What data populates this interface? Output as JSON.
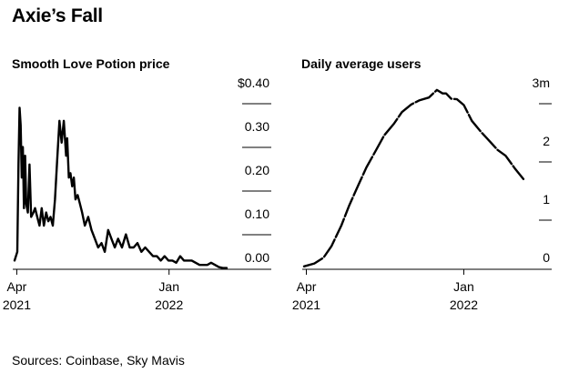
{
  "title": "Axie’s Fall",
  "source": "Sources: Coinbase, Sky Mavis",
  "chart_data": [
    {
      "type": "line",
      "title": "Smooth Love Potion price",
      "y_tick_labels": [
        "$0.40",
        "0.30",
        "0.20",
        "0.10",
        "0.00"
      ],
      "y_ticks": [
        0.4,
        0.3,
        0.2,
        0.1,
        0.0
      ],
      "ylim": [
        0,
        0.4
      ],
      "x_ticks": [
        {
          "date": "2021-04-01",
          "label": [
            "Apr",
            "2021"
          ]
        },
        {
          "date": "2022-01-01",
          "label": [
            "Jan",
            "2022"
          ]
        }
      ],
      "xlim": [
        "2021-03-28",
        "2022-04-20"
      ],
      "series": [
        {
          "x": [
            "2021-03-28",
            "2021-04-02",
            "2021-04-04",
            "2021-04-06",
            "2021-04-08",
            "2021-04-10",
            "2021-04-12",
            "2021-04-14",
            "2021-04-16",
            "2021-04-18",
            "2021-04-21",
            "2021-04-24",
            "2021-04-27",
            "2021-05-01",
            "2021-05-04",
            "2021-05-08",
            "2021-05-12",
            "2021-05-16",
            "2021-05-20",
            "2021-05-24",
            "2021-05-28",
            "2021-06-01",
            "2021-06-05",
            "2021-06-09",
            "2021-06-13",
            "2021-06-17",
            "2021-06-21",
            "2021-06-25",
            "2021-06-29",
            "2021-07-01",
            "2021-07-04",
            "2021-07-07",
            "2021-07-10",
            "2021-07-13",
            "2021-07-16",
            "2021-07-20",
            "2021-07-24",
            "2021-07-28",
            "2021-08-02",
            "2021-08-08",
            "2021-08-14",
            "2021-08-20",
            "2021-08-26",
            "2021-09-01",
            "2021-09-07",
            "2021-09-13",
            "2021-09-19",
            "2021-09-25",
            "2021-10-01",
            "2021-10-08",
            "2021-10-15",
            "2021-10-22",
            "2021-10-29",
            "2021-11-05",
            "2021-11-12",
            "2021-11-19",
            "2021-11-26",
            "2021-12-03",
            "2021-12-10",
            "2021-12-17",
            "2021-12-24",
            "2021-12-31",
            "2022-01-07",
            "2022-01-14",
            "2022-01-21",
            "2022-01-28",
            "2022-02-04",
            "2022-02-11",
            "2022-02-18",
            "2022-02-25",
            "2022-03-04",
            "2022-03-11",
            "2022-03-18",
            "2022-03-25",
            "2022-04-01",
            "2022-04-08",
            "2022-04-15"
          ],
          "values": [
            0.02,
            0.04,
            0.24,
            0.37,
            0.33,
            0.21,
            0.28,
            0.14,
            0.26,
            0.15,
            0.13,
            0.24,
            0.12,
            0.13,
            0.14,
            0.12,
            0.1,
            0.14,
            0.1,
            0.13,
            0.11,
            0.12,
            0.1,
            0.16,
            0.25,
            0.34,
            0.29,
            0.34,
            0.26,
            0.3,
            0.21,
            0.22,
            0.19,
            0.21,
            0.16,
            0.17,
            0.15,
            0.13,
            0.1,
            0.12,
            0.09,
            0.07,
            0.05,
            0.06,
            0.04,
            0.09,
            0.07,
            0.05,
            0.07,
            0.05,
            0.08,
            0.05,
            0.05,
            0.06,
            0.04,
            0.05,
            0.04,
            0.03,
            0.03,
            0.02,
            0.03,
            0.02,
            0.02,
            0.015,
            0.03,
            0.02,
            0.02,
            0.02,
            0.015,
            0.01,
            0.01,
            0.01,
            0.015,
            0.01,
            0.005,
            0.003,
            0.003
          ]
        }
      ]
    },
    {
      "type": "line",
      "title": "Daily average users",
      "y_tick_labels": [
        "3m",
        "2",
        "1",
        "0"
      ],
      "y_ticks": [
        3,
        2,
        1,
        0
      ],
      "ylim": [
        0,
        3
      ],
      "x_ticks": [
        {
          "date": "2021-04-01",
          "label": [
            "Apr",
            "2021"
          ]
        },
        {
          "date": "2022-01-01",
          "label": [
            "Jan",
            "2022"
          ]
        }
      ],
      "xlim": [
        "2021-03-28",
        "2022-04-20"
      ],
      "series": [
        {
          "x": [
            "2021-03-28",
            "2021-04-15",
            "2021-05-01",
            "2021-05-15",
            "2021-06-01",
            "2021-06-15",
            "2021-07-01",
            "2021-07-15",
            "2021-08-01",
            "2021-08-15",
            "2021-09-01",
            "2021-09-15",
            "2021-10-01",
            "2021-10-15",
            "2021-11-01",
            "2021-11-15",
            "2021-11-25",
            "2021-12-01",
            "2021-12-10",
            "2021-12-20",
            "2022-01-01",
            "2022-01-15",
            "2022-02-01",
            "2022-02-15",
            "2022-03-01",
            "2022-03-15",
            "2022-04-01",
            "2022-04-15"
          ],
          "values": [
            0.05,
            0.1,
            0.2,
            0.4,
            0.75,
            1.1,
            1.45,
            1.75,
            2.05,
            2.3,
            2.5,
            2.7,
            2.83,
            2.9,
            2.95,
            3.08,
            3.02,
            3.02,
            2.93,
            2.92,
            2.82,
            2.55,
            2.35,
            2.2,
            2.05,
            1.95,
            1.72,
            1.55
          ]
        }
      ]
    }
  ]
}
